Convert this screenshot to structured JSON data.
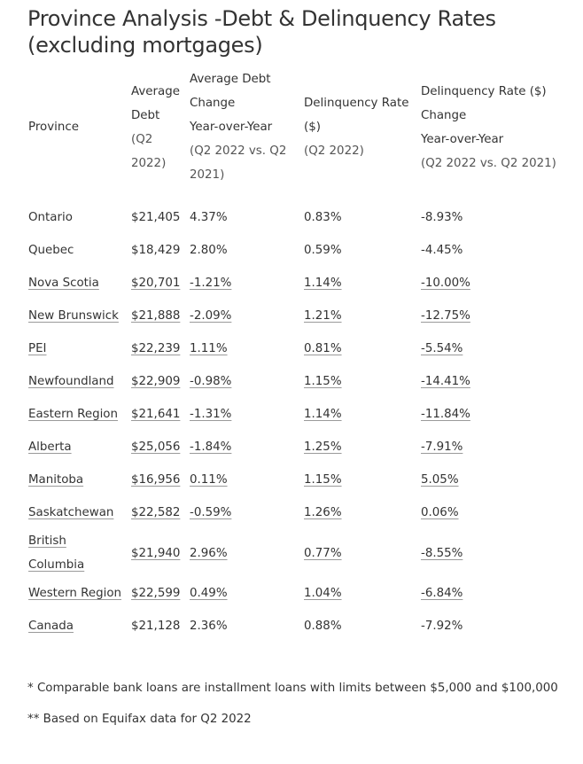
{
  "title": "Province Analysis -Debt & Delinquency Rates (excluding mortgages)",
  "headers": {
    "province": "Province",
    "avg_debt": [
      "Average",
      "Debt"
    ],
    "avg_debt_sub": [
      "(Q2",
      "2022)"
    ],
    "avg_debt_change": [
      "Average Debt",
      "Change",
      "Year-over-Year"
    ],
    "avg_debt_change_sub": [
      "(Q2 2022 vs. Q2",
      "2021)"
    ],
    "delinquency": [
      "Delinquency Rate",
      "($)"
    ],
    "delinquency_sub": "(Q2 2022)",
    "delinquency_change": [
      "Delinquency Rate ($)",
      "Change",
      "Year-over-Year"
    ],
    "delinquency_change_sub": "(Q2 2022 vs. Q2 2021)"
  },
  "rows": [
    {
      "province": "Ontario",
      "debt": "$21,405",
      "debt_change": "4.37%",
      "delinquency": "0.83%",
      "delinquency_change": "-8.93%"
    },
    {
      "province": "Quebec",
      "debt": "$18,429",
      "debt_change": "2.80%",
      "delinquency": "0.59%",
      "delinquency_change": "-4.45%"
    },
    {
      "province": "Nova Scotia",
      "debt": "$20,701",
      "debt_change": "-1.21%",
      "delinquency": "1.14%",
      "delinquency_change": "-10.00%"
    },
    {
      "province": "New Brunswick",
      "debt": "$21,888",
      "debt_change": "-2.09%",
      "delinquency": "1.21%",
      "delinquency_change": "-12.75%"
    },
    {
      "province": "PEI",
      "debt": "$22,239",
      "debt_change": "1.11%",
      "delinquency": "0.81%",
      "delinquency_change": "-5.54%"
    },
    {
      "province": "Newfoundland",
      "debt": "$22,909",
      "debt_change": "-0.98%",
      "delinquency": "1.15%",
      "delinquency_change": "-14.41%"
    },
    {
      "province": "Eastern Region",
      "debt": "$21,641",
      "debt_change": "-1.31%",
      "delinquency": "1.14%",
      "delinquency_change": "-11.84%"
    },
    {
      "province": "Alberta",
      "debt": "$25,056",
      "debt_change": "-1.84%",
      "delinquency": "1.25%",
      "delinquency_change": "-7.91%"
    },
    {
      "province": "Manitoba",
      "debt": "$16,956",
      "debt_change": "0.11%",
      "delinquency": "1.15%",
      "delinquency_change": "5.05%"
    },
    {
      "province": "Saskatchewan",
      "debt": "$22,582",
      "debt_change": "-0.59%",
      "delinquency": "1.26%",
      "delinquency_change": "0.06%"
    },
    {
      "province": "British Columbia",
      "debt": "$21,940",
      "debt_change": "2.96%",
      "delinquency": "0.77%",
      "delinquency_change": "-8.55%"
    },
    {
      "province": "Western Region",
      "debt": "$22,599",
      "debt_change": "0.49%",
      "delinquency": "1.04%",
      "delinquency_change": "-6.84%"
    },
    {
      "province": "Canada",
      "debt": "$21,128",
      "debt_change": "2.36%",
      "delinquency": "0.88%",
      "delinquency_change": "-7.92%"
    }
  ],
  "footnotes": [
    "* Comparable bank loans are installment loans with limits between $5,000 and $100,000",
    "** Based on Equifax data for Q2 2022"
  ]
}
